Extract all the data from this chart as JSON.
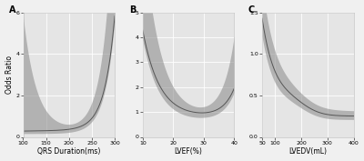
{
  "panels": [
    {
      "label": "A",
      "xlabel": "QRS Duration(ms)",
      "ylabel": "Odds Ratio",
      "xlim": [
        100,
        300
      ],
      "ylim": [
        0.0,
        6.0
      ],
      "yticks": [
        0,
        2,
        4,
        6
      ],
      "ytick_labels": [
        "0",
        "2",
        "4",
        "6"
      ],
      "xticks": [
        100,
        150,
        200,
        250,
        300
      ],
      "xtick_labels": [
        "100",
        "150",
        "200",
        "250",
        "300"
      ],
      "curve_type": "A"
    },
    {
      "label": "B",
      "xlabel": "LVEF(%)",
      "ylabel": "",
      "xlim": [
        10,
        40
      ],
      "ylim": [
        0.0,
        5.0
      ],
      "yticks": [
        0,
        1,
        2,
        3,
        4,
        5
      ],
      "ytick_labels": [
        "0",
        "1",
        "2",
        "3",
        "4",
        "5"
      ],
      "xticks": [
        10,
        20,
        30,
        40
      ],
      "xtick_labels": [
        "10",
        "20",
        "30",
        "40"
      ],
      "curve_type": "B"
    },
    {
      "label": "C",
      "xlabel": "LVEDV(mL)",
      "ylabel": "",
      "xlim": [
        50,
        400
      ],
      "ylim": [
        0.0,
        1.5
      ],
      "yticks": [
        0.0,
        0.5,
        1.0,
        1.5
      ],
      "ytick_labels": [
        "0.0",
        "0.5",
        "1.0",
        "1.5"
      ],
      "xticks": [
        50,
        100,
        200,
        300,
        400
      ],
      "xtick_labels": [
        "50",
        "100",
        "200",
        "300",
        "400"
      ],
      "curve_type": "C"
    }
  ],
  "line_color": "#555555",
  "fill_color": "#888888",
  "fill_alpha": 0.55,
  "panel_bg": "#e5e5e5",
  "fig_bg": "#f0f0f0",
  "grid_color": "#ffffff",
  "ylabel_fontsize": 5.5,
  "xlabel_fontsize": 5.5,
  "tick_fontsize": 4.5,
  "panel_label_fontsize": 7,
  "linewidth": 0.7
}
